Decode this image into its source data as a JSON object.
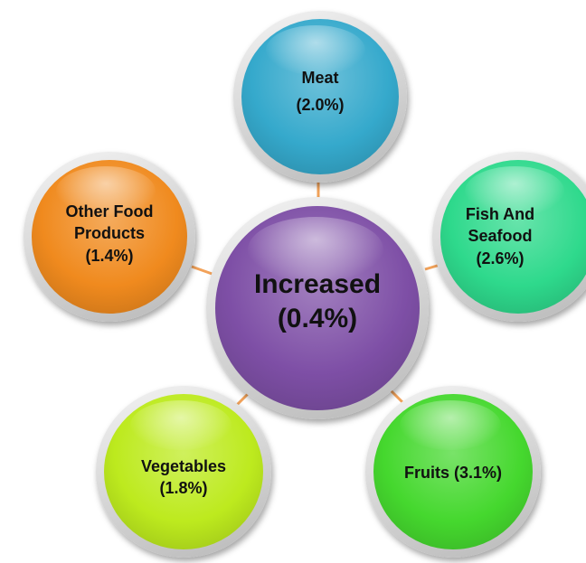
{
  "center": {
    "line1": "Increased",
    "line2": "(0.4%)",
    "color": "#7E4FA6"
  },
  "nodes": [
    {
      "id": "meat",
      "lines": [
        "Meat",
        "(2.0%)"
      ],
      "color": "#35A9CC"
    },
    {
      "id": "fish-and-seafood",
      "lines": [
        "Fish And",
        "Seafood",
        "(2.6%)"
      ],
      "color": "#2ED98C"
    },
    {
      "id": "fruits",
      "lines": [
        "Fruits (3.1%)"
      ],
      "color": "#45D82E"
    },
    {
      "id": "vegetables",
      "lines": [
        "Vegetables",
        "(1.8%)"
      ],
      "color": "#BDEA1E"
    },
    {
      "id": "other-food-products",
      "lines": [
        "Other Food",
        "Products",
        "(1.4%)"
      ],
      "color": "#F08A1E"
    }
  ],
  "connector_color": "#F2A25A"
}
